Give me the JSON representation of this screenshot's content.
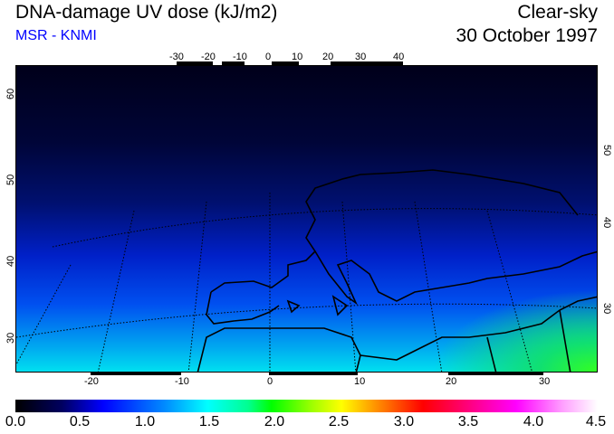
{
  "header": {
    "title": "DNA-damage UV dose (kJ/m2)",
    "source": "MSR - KNMI",
    "condition": "Clear-sky",
    "date": "30 October 1997"
  },
  "map": {
    "top_lon_labels": [
      "-30",
      "-20",
      "-10",
      "0",
      "10",
      "20",
      "30",
      "40"
    ],
    "bottom_lon_labels": [
      "-20",
      "-10",
      "0",
      "10",
      "20",
      "30"
    ],
    "left_lat_labels": [
      "60",
      "50",
      "40",
      "30"
    ],
    "right_lat_labels": [
      "50",
      "40",
      "30"
    ]
  },
  "colorbar": {
    "labels": [
      "0.0",
      "0.5",
      "1.0",
      "1.5",
      "2.0",
      "2.5",
      "3.0",
      "3.5",
      "4.0",
      "4.5"
    ],
    "min": 0.0,
    "max": 4.5,
    "colors": [
      "#000000",
      "#000060",
      "#0000ff",
      "#0090ff",
      "#00ffff",
      "#00ff00",
      "#ffff00",
      "#ff9000",
      "#ff0000",
      "#ff00ff",
      "#ffffff"
    ]
  }
}
